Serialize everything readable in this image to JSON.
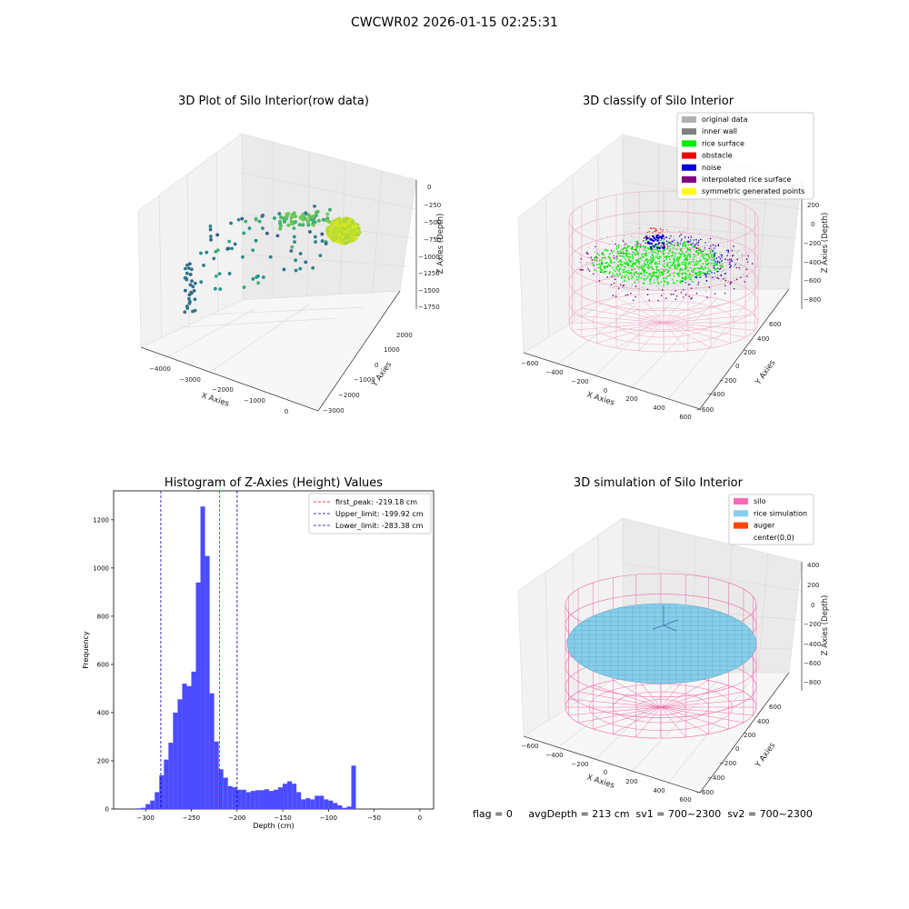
{
  "figure": {
    "suptitle": "CWCWR02 2026-01-15 02:25:31"
  },
  "panels": {
    "raw": {
      "title": "3D Plot of Silo Interior(row data)",
      "xlabel": "X Axies",
      "ylabel": "Y Axies",
      "zlabel": "Z Axies (Depth)",
      "x_ticks": [
        "−4000",
        "−3000",
        "−2000",
        "−1000",
        "0"
      ],
      "y_ticks": [
        "2000",
        "1000",
        "0",
        "−1000",
        "−2000",
        "−3000"
      ],
      "z_ticks": [
        "0",
        "−250",
        "−500",
        "−750",
        "−1000",
        "−1250",
        "−1500",
        "−1750"
      ]
    },
    "classify": {
      "title": "3D classify of Silo Interior",
      "xlabel": "X Axies",
      "ylabel": "Y Axies",
      "zlabel": "Z Axies (Depth)",
      "x_ticks": [
        "−600",
        "−400",
        "−200",
        "0",
        "200",
        "400",
        "600"
      ],
      "y_ticks": [
        "600",
        "400",
        "200",
        "0",
        "−200",
        "−400",
        "−600"
      ],
      "z_ticks": [
        "200",
        "0",
        "−200",
        "−400",
        "−600",
        "−800"
      ],
      "legend": [
        {
          "label": "original data",
          "color": "#b0b0b0"
        },
        {
          "label": "inner wall",
          "color": "#808080"
        },
        {
          "label": "rice surface",
          "color": "#00ee00"
        },
        {
          "label": "obstacle",
          "color": "#ee0000"
        },
        {
          "label": "noise",
          "color": "#0000dd"
        },
        {
          "label": "interpolated rice surface",
          "color": "#800080"
        },
        {
          "label": "symmetric generated points",
          "color": "#ffff00"
        }
      ]
    },
    "simulation": {
      "title": "3D simulation of Silo Interior",
      "xlabel": "X Axies",
      "ylabel": "Y Axies",
      "zlabel": "Z Axies (Depth)",
      "x_ticks": [
        "−600",
        "−400",
        "−200",
        "0",
        "200",
        "400",
        "600"
      ],
      "y_ticks": [
        "600",
        "400",
        "200",
        "0",
        "−200",
        "−400",
        "−600"
      ],
      "z_ticks": [
        "400",
        "200",
        "0",
        "−200",
        "−400",
        "−600",
        "−800"
      ],
      "legend": [
        {
          "label": "silo",
          "color": "#ff69b4"
        },
        {
          "label": "rice simulation",
          "color": "#87ceeb"
        },
        {
          "label": "auger",
          "color": "#ff4500"
        },
        {
          "label": "center(0,0)",
          "color": ""
        }
      ]
    }
  },
  "footer": {
    "text": "flag = 0     avgDepth = 213 cm  sv1 = 700~2300  sv2 = 700~2300"
  },
  "chart_data": [
    {
      "type": "scatter",
      "title": "3D Plot of Silo Interior(row data)",
      "xlabel": "X Axies",
      "ylabel": "Y Axies",
      "zlabel": "Z Axies (Depth)",
      "xlim": [
        -4500,
        500
      ],
      "ylim": [
        -3000,
        2500
      ],
      "zlim": [
        -1750,
        0
      ],
      "colormap": "viridis"
    },
    {
      "type": "scatter",
      "title": "3D classify of Silo Interior",
      "xlabel": "X Axies",
      "ylabel": "Y Axies",
      "zlabel": "Z Axies (Depth)",
      "xlim": [
        -600,
        600
      ],
      "ylim": [
        -600,
        600
      ],
      "zlim": [
        -900,
        250
      ],
      "series": [
        {
          "name": "original data"
        },
        {
          "name": "inner wall"
        },
        {
          "name": "rice surface"
        },
        {
          "name": "obstacle"
        },
        {
          "name": "noise"
        },
        {
          "name": "interpolated rice surface"
        },
        {
          "name": "symmetric generated points"
        }
      ],
      "legend_position": "top-right"
    },
    {
      "type": "bar",
      "title": "Histogram of Z-Axies (Height) Values",
      "xlabel": "Depth (cm)",
      "ylabel": "Frequency",
      "xlim": [
        -335,
        15
      ],
      "ylim": [
        0,
        1320
      ],
      "x_ticks": [
        -300,
        -250,
        -200,
        -150,
        -100,
        -50,
        0
      ],
      "y_ticks": [
        0,
        200,
        400,
        600,
        800,
        1000,
        1200
      ],
      "bin_width": 5,
      "bin_starts": [
        -315,
        -310,
        -305,
        -300,
        -295,
        -290,
        -285,
        -280,
        -275,
        -270,
        -265,
        -260,
        -255,
        -250,
        -245,
        -240,
        -235,
        -230,
        -225,
        -220,
        -215,
        -210,
        -205,
        -200,
        -195,
        -190,
        -185,
        -180,
        -175,
        -170,
        -165,
        -160,
        -155,
        -150,
        -145,
        -140,
        -135,
        -130,
        -125,
        -120,
        -115,
        -110,
        -105,
        -100,
        -95,
        -90,
        -85,
        -80,
        -75,
        -70,
        -65,
        -60,
        -55,
        -50,
        -45,
        -40,
        -35,
        -30,
        -25,
        -20,
        -15,
        -10,
        -5,
        0
      ],
      "values": [
        0,
        3,
        5,
        20,
        35,
        70,
        140,
        205,
        275,
        400,
        455,
        520,
        510,
        570,
        940,
        1255,
        1050,
        480,
        280,
        165,
        130,
        95,
        90,
        80,
        80,
        70,
        75,
        78,
        78,
        82,
        75,
        80,
        90,
        105,
        115,
        105,
        70,
        40,
        45,
        40,
        55,
        55,
        40,
        35,
        25,
        15,
        5,
        10,
        180,
        0,
        0,
        0,
        0,
        0,
        0,
        0,
        0,
        0,
        0,
        0,
        0,
        0,
        0,
        0
      ],
      "vlines": [
        {
          "name": "first_peak: -219.18 cm",
          "x": -219.18,
          "color": "#ff0000"
        },
        {
          "name": "Upper_limit: -199.92 cm",
          "x": -199.92,
          "color": "#0000aa"
        },
        {
          "name": "Lower_limit: -283.38 cm",
          "x": -283.38,
          "color": "#0000aa"
        }
      ],
      "legend_position": "top-right",
      "bar_color": "#4b4bff"
    },
    {
      "type": "surface",
      "title": "3D simulation of Silo Interior",
      "xlabel": "X Axies",
      "ylabel": "Y Axies",
      "zlabel": "Z Axies (Depth)",
      "xlim": [
        -600,
        600
      ],
      "ylim": [
        -600,
        600
      ],
      "zlim": [
        -900,
        450
      ],
      "series": [
        {
          "name": "silo"
        },
        {
          "name": "rice simulation"
        },
        {
          "name": "auger"
        },
        {
          "name": "center(0,0)"
        }
      ],
      "legend_position": "top-right"
    }
  ]
}
